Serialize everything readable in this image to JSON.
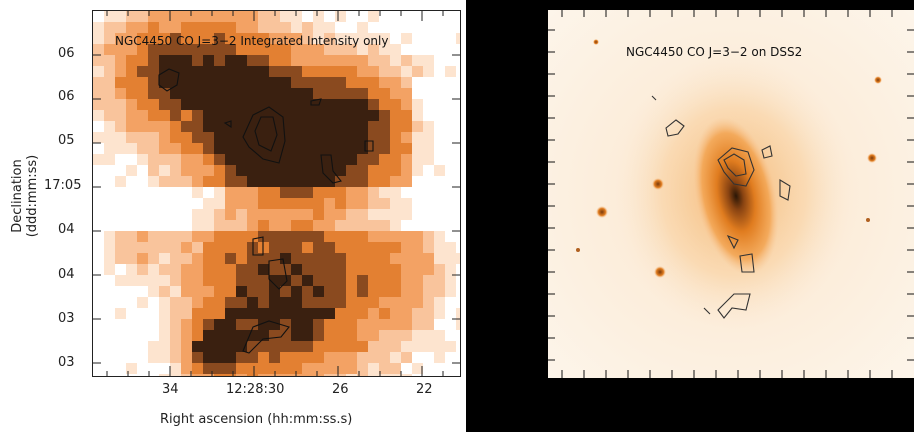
{
  "left_panel": {
    "title": "NGC4450 CO J=3−2 Integrated Intensity only",
    "ylabel": "Declination (ddd:mm:ss)",
    "xlabel": "Right ascension (hh:mm:ss.s)",
    "yticks": [
      "06",
      "06",
      "05",
      "17:05",
      "04",
      "04",
      "03",
      "03"
    ],
    "xticks": [
      "34",
      "12:28:30",
      "26",
      "22"
    ],
    "colormap": [
      "#ffffff",
      "#fde4cf",
      "#f9c49c",
      "#f3a264",
      "#e38032",
      "#8a4a1f",
      "#3a2010"
    ]
  },
  "right_panel": {
    "title": "NGC4450 CO J=3−2 on DSS2",
    "background": "#000000",
    "accent": "#e8861e"
  }
}
